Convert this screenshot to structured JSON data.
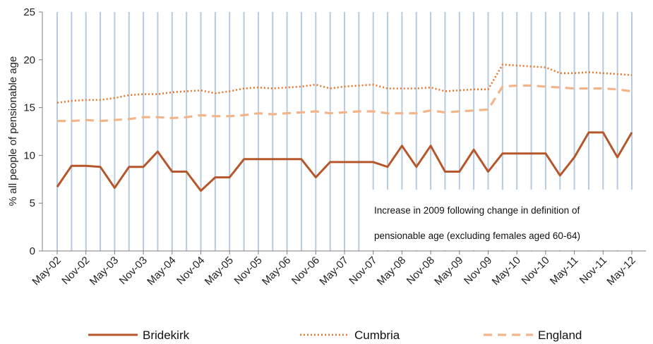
{
  "chart_data": {
    "type": "line",
    "title": "",
    "xlabel": "",
    "ylabel": "% all people of pensionable age",
    "ylim": [
      0,
      25
    ],
    "yticks": [
      0,
      5,
      10,
      15,
      20,
      25
    ],
    "grid": "vertical lines at each data point",
    "legend_position": "bottom",
    "x": [
      "May-02",
      "Aug-02",
      "Nov-02",
      "Feb-03",
      "May-03",
      "Aug-03",
      "Nov-03",
      "Feb-04",
      "May-04",
      "Aug-04",
      "Nov-04",
      "Feb-05",
      "May-05",
      "Aug-05",
      "Nov-05",
      "Feb-06",
      "May-06",
      "Aug-06",
      "Nov-06",
      "Feb-07",
      "May-07",
      "Aug-07",
      "Nov-07",
      "Feb-08",
      "May-08",
      "Aug-08",
      "Nov-08",
      "Feb-09",
      "May-09",
      "Aug-09",
      "Nov-09",
      "Feb-10",
      "May-10",
      "Aug-10",
      "Nov-10",
      "Feb-11",
      "May-11",
      "Aug-11",
      "Nov-11",
      "Feb-12",
      "May-12"
    ],
    "x_tick_labels": [
      "May-02",
      "Nov-02",
      "May-03",
      "Nov-03",
      "May-04",
      "Nov-04",
      "May-05",
      "Nov-05",
      "May-06",
      "Nov-06",
      "May-07",
      "Nov-07",
      "May-08",
      "Nov-08",
      "May-09",
      "Nov-09",
      "May-10",
      "Nov-10",
      "May-11",
      "Nov-11",
      "May-12"
    ],
    "series": [
      {
        "name": "Bridekirk",
        "color": "#b5572a",
        "style": "solid",
        "values": [
          6.7,
          8.9,
          8.9,
          8.8,
          6.6,
          8.8,
          8.8,
          10.4,
          8.3,
          8.3,
          6.3,
          7.7,
          7.7,
          9.6,
          9.6,
          9.6,
          9.6,
          9.6,
          7.7,
          9.3,
          9.3,
          9.3,
          9.3,
          8.8,
          11.0,
          8.8,
          11.0,
          8.3,
          8.3,
          10.6,
          8.3,
          10.2,
          10.2,
          10.2,
          10.2,
          7.9,
          9.8,
          12.4,
          12.4,
          9.8,
          12.4
        ]
      },
      {
        "name": "Cumbria",
        "color": "#e8782c",
        "style": "dotted",
        "values": [
          15.5,
          15.7,
          15.8,
          15.8,
          16.0,
          16.3,
          16.4,
          16.4,
          16.6,
          16.7,
          16.8,
          16.5,
          16.7,
          17.0,
          17.1,
          17.0,
          17.1,
          17.2,
          17.4,
          17.0,
          17.2,
          17.3,
          17.4,
          17.0,
          17.0,
          17.0,
          17.1,
          16.7,
          16.8,
          16.9,
          16.9,
          19.5,
          19.4,
          19.3,
          19.2,
          18.6,
          18.6,
          18.7,
          18.6,
          18.5,
          18.4
        ]
      },
      {
        "name": "England",
        "color": "#f2b489",
        "style": "dashed",
        "values": [
          13.6,
          13.6,
          13.7,
          13.6,
          13.7,
          13.8,
          14.0,
          14.0,
          13.9,
          14.0,
          14.2,
          14.1,
          14.1,
          14.2,
          14.4,
          14.3,
          14.4,
          14.5,
          14.6,
          14.4,
          14.5,
          14.6,
          14.6,
          14.4,
          14.4,
          14.4,
          14.7,
          14.5,
          14.6,
          14.7,
          14.8,
          17.2,
          17.3,
          17.3,
          17.2,
          17.1,
          17.0,
          17.0,
          17.0,
          16.9,
          16.7
        ]
      }
    ],
    "annotation": {
      "lines": [
        "Increase in 2009 following change in definition of",
        "pensionable age (excluding females aged 60-64)"
      ]
    }
  },
  "colors": {
    "grid": "#b7cbe1",
    "axis": "#7f7f7f"
  }
}
